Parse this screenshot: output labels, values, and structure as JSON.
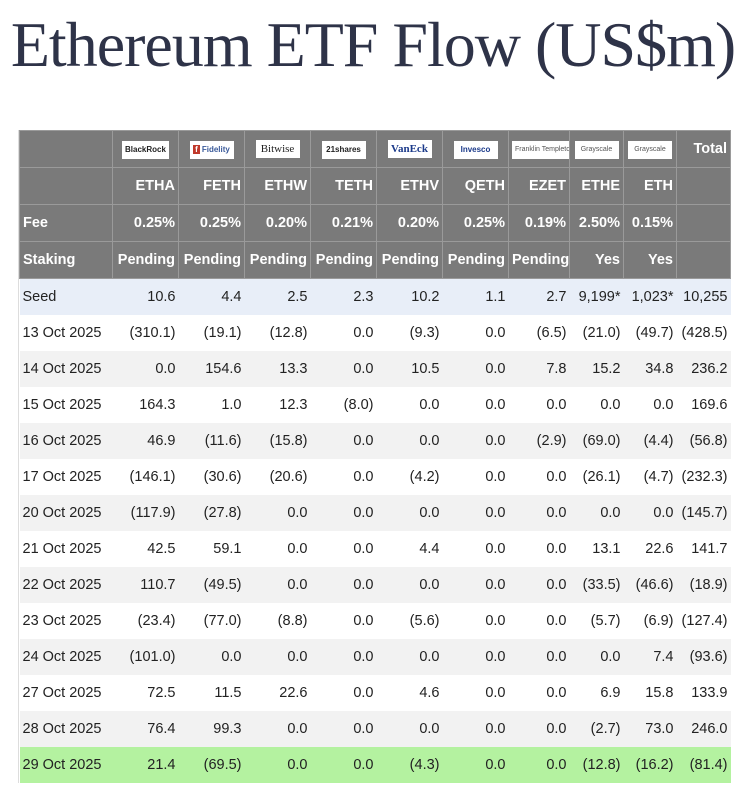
{
  "title": "Ethereum ETF Flow (US$m)",
  "issuers": [
    "BlackRock",
    "Fidelity",
    "Bitwise",
    "21shares",
    "VanEck",
    "Invesco",
    "Franklin Templeton",
    "Grayscale",
    "Grayscale"
  ],
  "total_label": "Total",
  "tickers": [
    "ETHA",
    "FETH",
    "ETHW",
    "TETH",
    "ETHV",
    "QETH",
    "EZET",
    "ETHE",
    "ETH"
  ],
  "fee_label": "Fee",
  "fees": [
    "0.25%",
    "0.25%",
    "0.20%",
    "0.21%",
    "0.20%",
    "0.25%",
    "0.19%",
    "2.50%",
    "0.15%"
  ],
  "staking_label": "Staking",
  "staking": [
    "Pending",
    "Pending",
    "Pending",
    "Pending",
    "Pending",
    "Pending",
    "Pending",
    "Yes",
    "Yes"
  ],
  "colors": {
    "negative": "#c0392b",
    "header": "#7a7a7a",
    "seed": "#e8eef8",
    "highlight": "#b4f2a0"
  },
  "rows": [
    {
      "label": "Seed",
      "values": [
        "10.6",
        "4.4",
        "2.5",
        "2.3",
        "10.2",
        "1.1",
        "2.7",
        "9,199*",
        "1,023*",
        "10,255"
      ]
    },
    {
      "label": "13 Oct 2025",
      "values": [
        "(310.1)",
        "(19.1)",
        "(12.8)",
        "0.0",
        "(9.3)",
        "0.0",
        "(6.5)",
        "(21.0)",
        "(49.7)",
        "(428.5)"
      ]
    },
    {
      "label": "14 Oct 2025",
      "values": [
        "0.0",
        "154.6",
        "13.3",
        "0.0",
        "10.5",
        "0.0",
        "7.8",
        "15.2",
        "34.8",
        "236.2"
      ]
    },
    {
      "label": "15 Oct 2025",
      "values": [
        "164.3",
        "1.0",
        "12.3",
        "(8.0)",
        "0.0",
        "0.0",
        "0.0",
        "0.0",
        "0.0",
        "169.6"
      ]
    },
    {
      "label": "16 Oct 2025",
      "values": [
        "46.9",
        "(11.6)",
        "(15.8)",
        "0.0",
        "0.0",
        "0.0",
        "(2.9)",
        "(69.0)",
        "(4.4)",
        "(56.8)"
      ]
    },
    {
      "label": "17 Oct 2025",
      "values": [
        "(146.1)",
        "(30.6)",
        "(20.6)",
        "0.0",
        "(4.2)",
        "0.0",
        "0.0",
        "(26.1)",
        "(4.7)",
        "(232.3)"
      ]
    },
    {
      "label": "20 Oct 2025",
      "values": [
        "(117.9)",
        "(27.8)",
        "0.0",
        "0.0",
        "0.0",
        "0.0",
        "0.0",
        "0.0",
        "0.0",
        "(145.7)"
      ]
    },
    {
      "label": "21 Oct 2025",
      "values": [
        "42.5",
        "59.1",
        "0.0",
        "0.0",
        "4.4",
        "0.0",
        "0.0",
        "13.1",
        "22.6",
        "141.7"
      ]
    },
    {
      "label": "22 Oct 2025",
      "values": [
        "110.7",
        "(49.5)",
        "0.0",
        "0.0",
        "0.0",
        "0.0",
        "0.0",
        "(33.5)",
        "(46.6)",
        "(18.9)"
      ]
    },
    {
      "label": "23 Oct 2025",
      "values": [
        "(23.4)",
        "(77.0)",
        "(8.8)",
        "0.0",
        "(5.6)",
        "0.0",
        "0.0",
        "(5.7)",
        "(6.9)",
        "(127.4)"
      ]
    },
    {
      "label": "24 Oct 2025",
      "values": [
        "(101.0)",
        "0.0",
        "0.0",
        "0.0",
        "0.0",
        "0.0",
        "0.0",
        "0.0",
        "7.4",
        "(93.6)"
      ]
    },
    {
      "label": "27 Oct 2025",
      "values": [
        "72.5",
        "11.5",
        "22.6",
        "0.0",
        "4.6",
        "0.0",
        "0.0",
        "6.9",
        "15.8",
        "133.9"
      ]
    },
    {
      "label": "28 Oct 2025",
      "values": [
        "76.4",
        "99.3",
        "0.0",
        "0.0",
        "0.0",
        "0.0",
        "0.0",
        "(2.7)",
        "73.0",
        "246.0"
      ]
    },
    {
      "label": "29 Oct 2025",
      "values": [
        "21.4",
        "(69.5)",
        "0.0",
        "0.0",
        "(4.3)",
        "0.0",
        "0.0",
        "(12.8)",
        "(16.2)",
        "(81.4)"
      ]
    }
  ]
}
